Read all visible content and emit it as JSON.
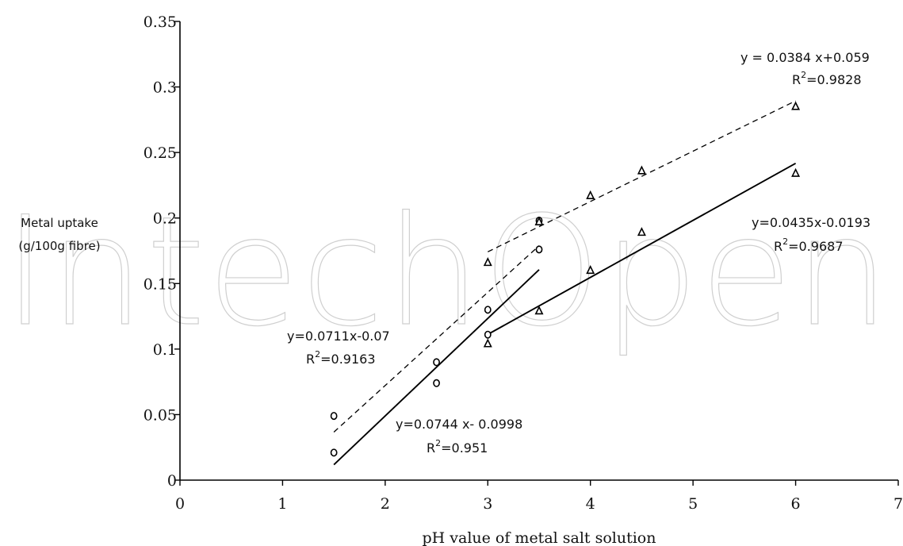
{
  "watermark": "IntechOpen",
  "chart_data": {
    "type": "scatter",
    "title": "",
    "xlabel": "pH value of metal salt solution",
    "ylabel_lines": [
      "Metal uptake",
      "(g/100g fibre)"
    ],
    "xlim": [
      0,
      7
    ],
    "ylim": [
      0,
      0.35
    ],
    "x_ticks": [
      0,
      1,
      2,
      3,
      4,
      5,
      6,
      7
    ],
    "y_ticks": [
      0,
      0.05,
      0.1,
      0.15,
      0.2,
      0.25,
      0.3,
      0.35
    ],
    "y_tick_labels": [
      "0",
      "0.05",
      "0.1",
      "0.15",
      "0.2",
      "0.25",
      "0.3",
      "0.35"
    ],
    "grid": false,
    "series": [
      {
        "marker": "circle",
        "points": [
          {
            "x": 1.5,
            "y": 0.049
          },
          {
            "x": 2.5,
            "y": 0.09
          },
          {
            "x": 3.0,
            "y": 0.13
          },
          {
            "x": 3.5,
            "y": 0.198
          }
        ]
      },
      {
        "marker": "circle",
        "points": [
          {
            "x": 1.5,
            "y": 0.021
          },
          {
            "x": 2.5,
            "y": 0.074
          },
          {
            "x": 3.0,
            "y": 0.111
          },
          {
            "x": 3.5,
            "y": 0.176
          }
        ]
      },
      {
        "marker": "triangle",
        "points": [
          {
            "x": 3.0,
            "y": 0.166
          },
          {
            "x": 3.5,
            "y": 0.197
          },
          {
            "x": 4.0,
            "y": 0.217
          },
          {
            "x": 4.5,
            "y": 0.236
          },
          {
            "x": 6.0,
            "y": 0.285
          }
        ]
      },
      {
        "marker": "triangle",
        "points": [
          {
            "x": 3.0,
            "y": 0.104
          },
          {
            "x": 3.5,
            "y": 0.129
          },
          {
            "x": 4.0,
            "y": 0.16
          },
          {
            "x": 4.5,
            "y": 0.189
          },
          {
            "x": 6.0,
            "y": 0.234
          }
        ]
      }
    ],
    "trendlines": [
      {
        "style": "dashed",
        "slope": 0.0711,
        "intercept": -0.07,
        "x_range": [
          1.5,
          3.5
        ],
        "equation": "y=0.0711x-0.07",
        "r2": "=0.9163"
      },
      {
        "style": "solid",
        "slope": 0.0744,
        "intercept": -0.0998,
        "x_range": [
          1.5,
          3.5
        ],
        "equation": "y=0.0744 x- 0.0998",
        "r2": "=0.951"
      },
      {
        "style": "dashed",
        "slope": 0.0384,
        "intercept": 0.059,
        "x_range": [
          3.0,
          6.0
        ],
        "equation": "y = 0.0384 x+0.059",
        "r2": "=0.9828"
      },
      {
        "style": "solid",
        "slope": 0.0435,
        "intercept": -0.0193,
        "x_range": [
          3.0,
          6.0
        ],
        "equation": "y=0.0435x-0.0193",
        "r2": "=0.9687"
      }
    ]
  }
}
